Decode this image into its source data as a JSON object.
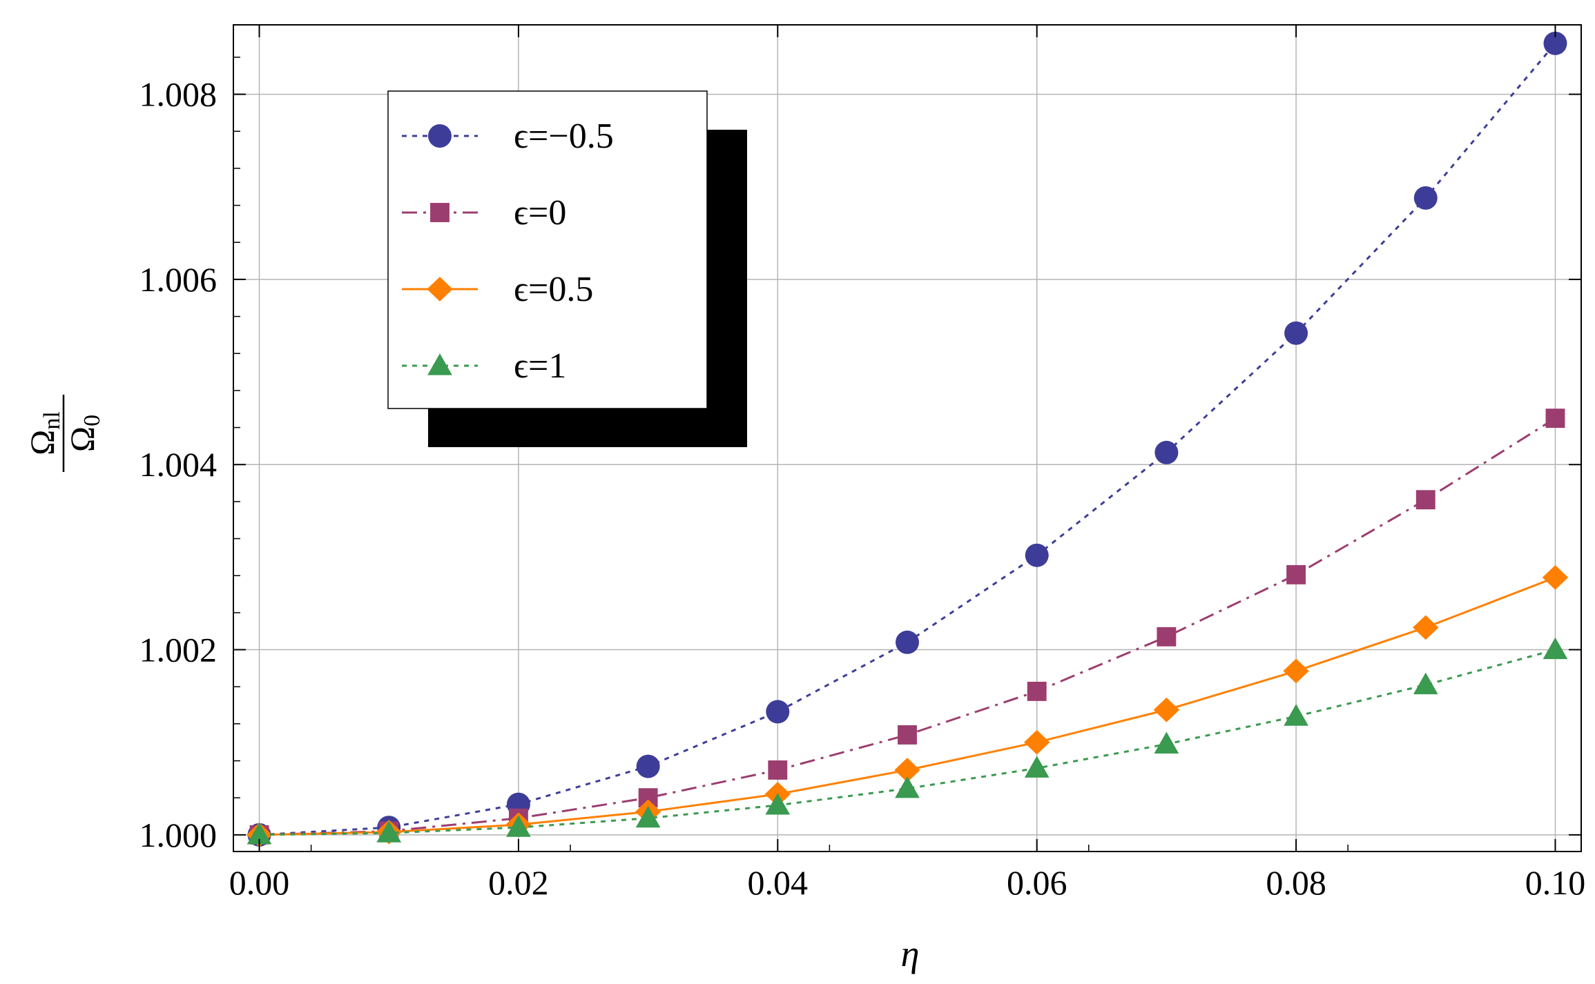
{
  "chart_data": {
    "type": "line",
    "xlabel": "η",
    "ylabel": {
      "main": "Ω",
      "num_sub": "nl",
      "den_sub": "0"
    },
    "xlim": [
      -0.002,
      0.102
    ],
    "ylim": [
      0.99982,
      1.00875
    ],
    "x_ticks": [
      0.0,
      0.02,
      0.04,
      0.06,
      0.08,
      0.1
    ],
    "x_tick_labels": [
      "0.00",
      "0.02",
      "0.04",
      "0.06",
      "0.08",
      "0.10"
    ],
    "y_ticks": [
      1.0,
      1.002,
      1.004,
      1.006,
      1.008
    ],
    "y_tick_labels": [
      "1.000",
      "1.002",
      "1.004",
      "1.006",
      "1.008"
    ],
    "grid": true,
    "legend_position": "top-left",
    "x": [
      0.0,
      0.01,
      0.02,
      0.03,
      0.04,
      0.05,
      0.06,
      0.07,
      0.08,
      0.09,
      0.1
    ],
    "series": [
      {
        "name": "ϵ=−0.5",
        "color": "#3d3d99",
        "marker": "circle",
        "dash": "dotted",
        "values": [
          1.0,
          1.00008,
          1.00033,
          1.00074,
          1.00133,
          1.00208,
          1.00302,
          1.00413,
          1.00542,
          1.00688,
          1.00855
        ]
      },
      {
        "name": "ϵ=0",
        "color": "#9c3d6f",
        "marker": "square",
        "dash": "dashdot",
        "values": [
          1.0,
          1.00004,
          1.00018,
          1.0004,
          1.0007,
          1.00108,
          1.00155,
          1.00214,
          1.00281,
          1.00362,
          1.0045
        ]
      },
      {
        "name": "ϵ=0.5",
        "color": "#ff8000",
        "marker": "diamond",
        "dash": "solid",
        "values": [
          1.0,
          1.00003,
          1.00011,
          1.00025,
          1.00044,
          1.0007,
          1.001,
          1.00135,
          1.00177,
          1.00224,
          1.00278
        ]
      },
      {
        "name": "ϵ=1",
        "color": "#3a9a50",
        "marker": "triangle",
        "dash": "dotted",
        "values": [
          1.0,
          1.00002,
          1.00008,
          1.00018,
          1.00032,
          1.0005,
          1.00072,
          1.00098,
          1.00128,
          1.00162,
          1.002
        ]
      }
    ]
  }
}
